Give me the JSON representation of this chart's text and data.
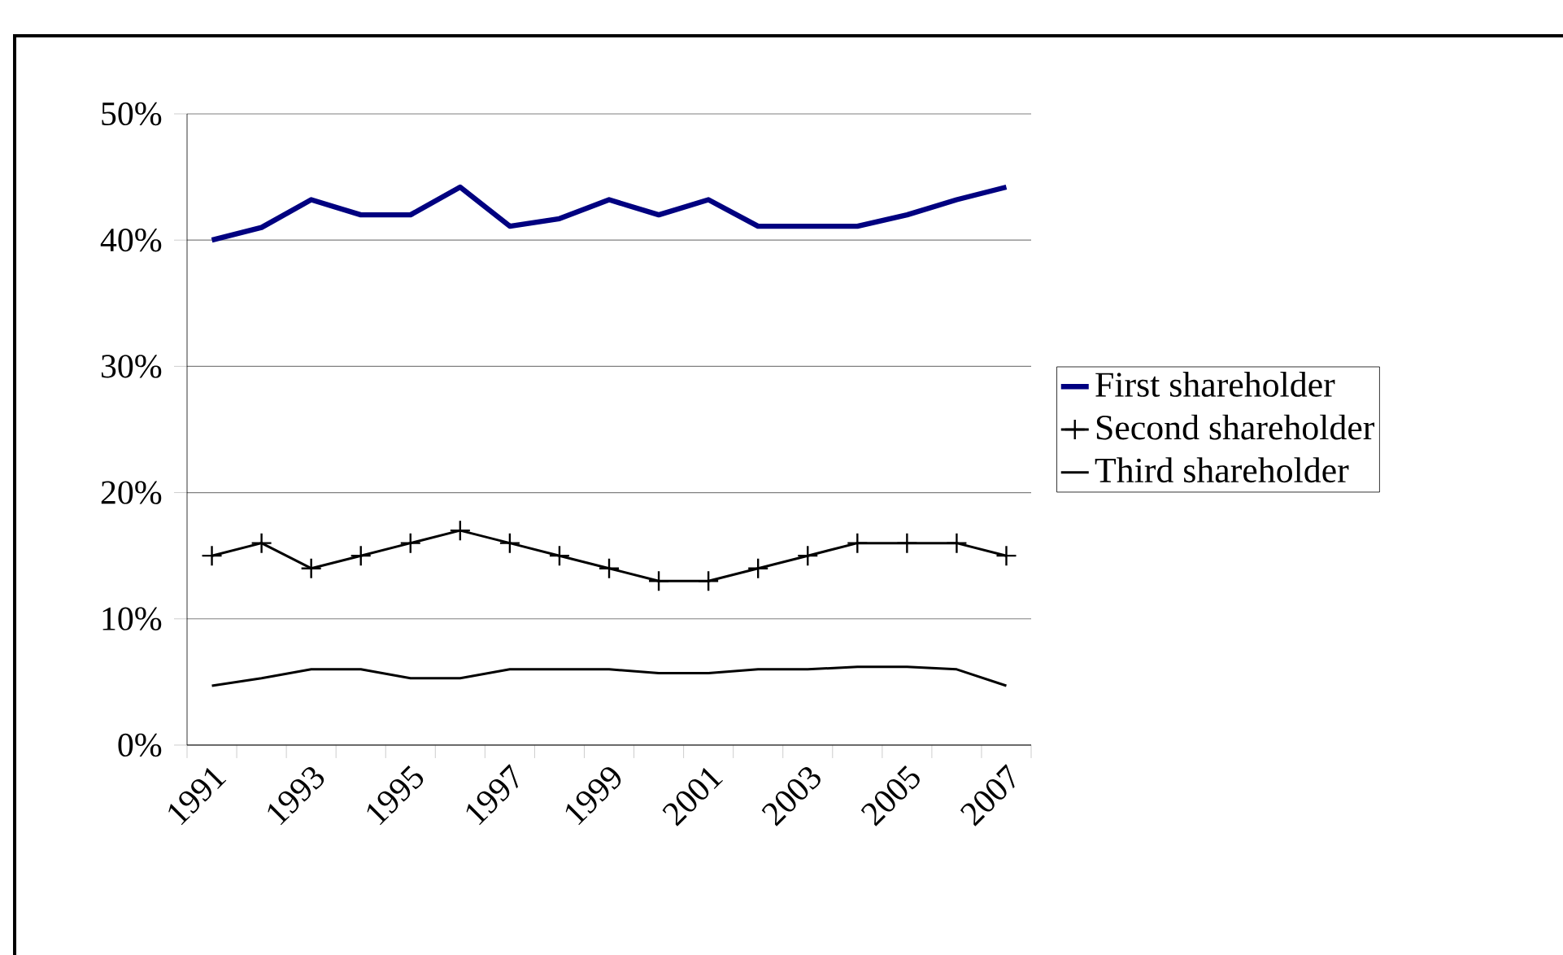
{
  "chart_data": {
    "type": "line",
    "categories": [
      "1991",
      null,
      "1993",
      null,
      "1995",
      null,
      "1997",
      null,
      "1999",
      null,
      "2001",
      null,
      "2003",
      null,
      "2005",
      null,
      "2007"
    ],
    "series": [
      {
        "name": "First shareholder",
        "color": "#000080",
        "marker": "none",
        "values": [
          40,
          41,
          43.2,
          42,
          42,
          44.2,
          41.1,
          41.7,
          43.2,
          42,
          43.2,
          41.1,
          41.1,
          41.1,
          42,
          43.2,
          44.2
        ]
      },
      {
        "name": "Second shareholder",
        "color": "#000000",
        "marker": "cross",
        "values": [
          15,
          16,
          14,
          15,
          16,
          17,
          16,
          15,
          14,
          13,
          13,
          14,
          15,
          16,
          16,
          16,
          15
        ]
      },
      {
        "name": "Third shareholder",
        "color": "#000000",
        "marker": "none",
        "values": [
          4.7,
          5.3,
          6,
          6,
          5.3,
          5.3,
          6,
          6,
          6,
          5.7,
          5.7,
          6,
          6,
          6.2,
          6.2,
          6,
          4.7
        ]
      }
    ],
    "ylim": [
      0,
      50
    ],
    "yticks": [
      {
        "value": 0,
        "label": "0%"
      },
      {
        "value": 10,
        "label": "10%"
      },
      {
        "value": 20,
        "label": "20%"
      },
      {
        "value": 30,
        "label": "30%"
      },
      {
        "value": 40,
        "label": "40%"
      },
      {
        "value": 50,
        "label": "50%"
      }
    ],
    "grid": "y",
    "legend": "right"
  }
}
